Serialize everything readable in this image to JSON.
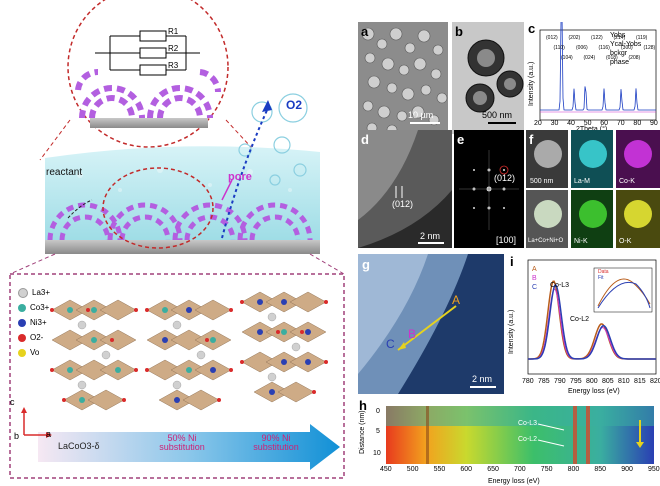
{
  "schematic": {
    "resistors": [
      "R1",
      "R2",
      "R3"
    ],
    "o2_label": "O2",
    "pore_label": "pore",
    "reactant_label": "reactant",
    "legend": [
      {
        "label": "La3+",
        "color": "#d0d0d0"
      },
      {
        "label": "Co3+",
        "color": "#3aaea0"
      },
      {
        "label": "Ni3+",
        "color": "#2a3fb3"
      },
      {
        "label": "O2-",
        "color": "#d92b2b"
      },
      {
        "label": "Vo",
        "color": "#e6d21e"
      }
    ],
    "axes": {
      "c": "c",
      "b": "b",
      "a": "a"
    },
    "arrow_labels": [
      "LaCoO3-δ",
      "50% Ni\nsubstitution",
      "90% Ni\nsubstitution"
    ]
  },
  "panels": {
    "a": {
      "label": "a",
      "scale": "10 µm"
    },
    "b": {
      "label": "b",
      "scale": "500 nm"
    },
    "c": {
      "label": "c",
      "xlabel": "2Theta (°)",
      "ylabel": "Intensity (a.u.)",
      "legend": [
        "Yobs",
        "Ycal-Yobs",
        "bckgr",
        "phase"
      ],
      "peaks": [
        "(012)",
        "(110)",
        "(104)",
        "(202)",
        "(006)",
        "(024)",
        "(122)",
        "(116)",
        "(018)",
        "(214)",
        "(300)",
        "(208)",
        "(119)",
        "(128)"
      ],
      "xticks": [
        "20",
        "30",
        "40",
        "50",
        "60",
        "70",
        "80",
        "90"
      ]
    },
    "d": {
      "label": "d",
      "spacing": "(012)",
      "scale": "2 nm"
    },
    "e": {
      "label": "e",
      "spot": "(012)",
      "zone": "[100]"
    },
    "f": {
      "label": "f",
      "scale": "500 nm",
      "maps": [
        "La-M",
        "Co-K",
        "La+Co+Ni+O",
        "Ni-K",
        "O-K"
      ]
    },
    "g": {
      "label": "g",
      "points": [
        "A",
        "B",
        "C"
      ],
      "scale": "2 nm"
    },
    "i": {
      "label": "i",
      "series": [
        "A",
        "B",
        "C"
      ],
      "peaks": [
        "Co-L3",
        "Co-L2"
      ],
      "xlabel": "Energy loss (eV)",
      "ylabel": "Intensity (a.u.)",
      "xticks": [
        "780",
        "785",
        "790",
        "795",
        "800",
        "805",
        "810",
        "815",
        "820"
      ],
      "inset_legend": [
        "Data",
        "Fit"
      ]
    },
    "h": {
      "label": "h",
      "xlabel": "Energy loss (eV)",
      "ylabel": "Distance (nm)",
      "yticks": [
        "0",
        "5",
        "10"
      ],
      "xticks": [
        "450",
        "500",
        "550",
        "600",
        "650",
        "700",
        "750",
        "800",
        "850",
        "900",
        "950"
      ],
      "annotations": [
        "Co-L3",
        "Co-L2"
      ]
    }
  }
}
